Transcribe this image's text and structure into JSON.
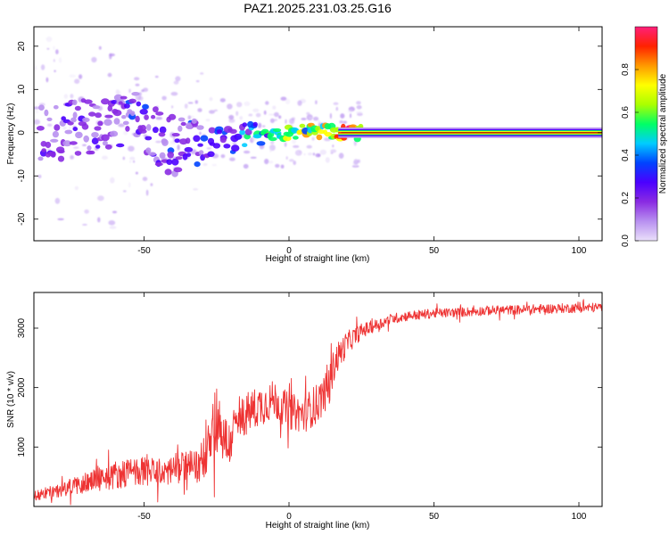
{
  "title": "PAZ1.2025.231.03.25.G16",
  "colors": {
    "snr_line": "#ee3333",
    "colorbar_stops": [
      "#eae0fa",
      "#b890f0",
      "#8a2be2",
      "#4b00ff",
      "#0044ff",
      "#00ccff",
      "#00ff66",
      "#aaff00",
      "#ffff00",
      "#ff9900",
      "#ff2200",
      "#ff1f7a"
    ]
  },
  "chart_data": [
    {
      "type": "heatmap",
      "title": "PAZ1.2025.231.03.25.G16",
      "xlabel": "Height of straight line (km)",
      "ylabel": "Frequency (Hz)",
      "xlim": [
        -88,
        108
      ],
      "ylim": [
        -25,
        24.5
      ],
      "xticks": [
        -50,
        0,
        50,
        100
      ],
      "xtick_labels": [
        "-50",
        "0",
        "50",
        "100"
      ],
      "yticks": [
        -20,
        -10,
        0,
        10,
        20
      ],
      "ytick_labels": [
        "-20",
        "-10",
        "0",
        "10",
        "20"
      ],
      "grid": false,
      "ridge": {
        "x": [
          -85,
          -80,
          -75,
          -70,
          -65,
          -60,
          -55,
          -50,
          -45,
          -40,
          -35,
          -30,
          -25,
          -20,
          -15,
          -10,
          -5,
          0,
          5,
          10,
          15,
          20,
          25,
          108
        ],
        "freq": [
          -0.5,
          0.2,
          1.0,
          1.5,
          1.0,
          3.5,
          3.0,
          2.0,
          -2.0,
          -3.0,
          -3.5,
          -3.0,
          -2.0,
          -1.5,
          -1.0,
          -0.8,
          -0.3,
          0.0,
          0.4,
          0.4,
          0.1,
          0.0,
          0.0,
          0.0
        ],
        "amplitude": [
          0.25,
          0.25,
          0.25,
          0.25,
          0.3,
          0.3,
          0.3,
          0.32,
          0.3,
          0.32,
          0.32,
          0.35,
          0.38,
          0.42,
          0.48,
          0.55,
          0.65,
          0.72,
          0.78,
          0.82,
          0.9,
          1.0,
          1.0,
          1.0
        ]
      },
      "colorbar": {
        "label": "Normalized spectral amplitude",
        "range": [
          0,
          1
        ],
        "ticks": [
          0.0,
          0.2,
          0.4,
          0.6,
          0.8
        ],
        "tick_labels": [
          "0.0",
          "0.2",
          "0.4",
          "0.6",
          "0.8"
        ]
      }
    },
    {
      "type": "line",
      "title": "",
      "xlabel": "Height of straight line (km)",
      "ylabel": "SNR (10 * v/v)",
      "xlim": [
        -88,
        108
      ],
      "ylim": [
        0,
        3600
      ],
      "xticks": [
        -50,
        0,
        50,
        100
      ],
      "xtick_labels": [
        "-50",
        "0",
        "50",
        "100"
      ],
      "yticks": [
        1000,
        2000,
        3000
      ],
      "ytick_labels": [
        "1000",
        "2000",
        "3000"
      ],
      "grid": false,
      "series": [
        {
          "name": "SNR",
          "x": [
            -88,
            -80,
            -72,
            -65,
            -58,
            -50,
            -45,
            -40,
            -35,
            -31,
            -29,
            -27,
            -25,
            -23,
            -21,
            -19,
            -15,
            -10,
            -5,
            0,
            5,
            10,
            13,
            16,
            20,
            25,
            30,
            35,
            40,
            50,
            60,
            70,
            80,
            90,
            100,
            108
          ],
          "y": [
            180,
            260,
            380,
            480,
            550,
            600,
            560,
            620,
            700,
            650,
            950,
            1350,
            1500,
            1250,
            1000,
            1300,
            1550,
            1700,
            1800,
            1600,
            1550,
            1750,
            1950,
            2450,
            2750,
            2950,
            3050,
            3150,
            3200,
            3250,
            3270,
            3300,
            3310,
            3330,
            3340,
            3350
          ],
          "noise": [
            90,
            110,
            170,
            220,
            240,
            240,
            240,
            260,
            260,
            260,
            480,
            580,
            600,
            520,
            420,
            380,
            360,
            350,
            330,
            300,
            320,
            340,
            320,
            280,
            200,
            130,
            100,
            90,
            85,
            80,
            80,
            80,
            80,
            80,
            80,
            80
          ]
        }
      ]
    }
  ]
}
